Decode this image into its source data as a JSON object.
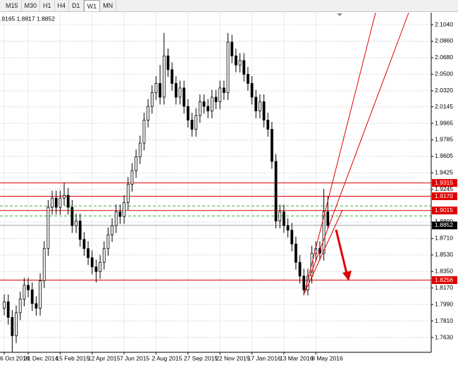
{
  "toolbar": {
    "timeframes": [
      "M15",
      "M30",
      "H1",
      "H4",
      "D1",
      "W1",
      "MN"
    ],
    "active": 5
  },
  "chart_data": {
    "type": "candlestick",
    "info": ".9165 1.8817 1.8852",
    "categories": [
      "6 Oct 2014",
      null,
      null,
      null,
      null,
      null,
      "21 Dec 2014",
      null,
      null,
      null,
      null,
      null,
      null,
      null,
      "15 Feb 2015",
      null,
      null,
      null,
      null,
      null,
      null,
      null,
      "12 Apr 2015",
      null,
      null,
      null,
      null,
      null,
      null,
      null,
      "7 Jun 2015",
      null,
      null,
      null,
      null,
      null,
      null,
      null,
      "2 Aug 2015",
      null,
      null,
      null,
      null,
      null,
      null,
      null,
      "27 Sep 2015",
      null,
      null,
      null,
      null,
      null,
      null,
      null,
      "22 Nov 2015",
      null,
      null,
      null,
      null,
      null,
      null,
      null,
      "17 Jan 2016",
      null,
      null,
      null,
      null,
      null,
      null,
      null,
      "13 Mar 2016",
      null,
      null,
      null,
      null,
      null,
      null,
      null,
      "8 May 2016",
      null,
      null,
      null
    ],
    "open": [
      1.795,
      1.802,
      1.785,
      1.765,
      1.79,
      1.805,
      1.82,
      1.815,
      1.8,
      1.795,
      1.825,
      1.86,
      1.905,
      1.915,
      1.905,
      1.915,
      1.918,
      1.905,
      1.885,
      1.89,
      1.87,
      1.86,
      1.85,
      1.84,
      1.835,
      1.845,
      1.86,
      1.875,
      1.885,
      1.9,
      1.895,
      1.91,
      1.93,
      1.945,
      1.96,
      1.975,
      2.0,
      2.015,
      2.03,
      2.04,
      2.025,
      2.07,
      2.055,
      2.04,
      2.025,
      2.035,
      2.015,
      2.0,
      1.99,
      2.005,
      2.02,
      2.015,
      2.01,
      2.025,
      2.02,
      2.035,
      2.03,
      2.085,
      2.07,
      2.06,
      2.065,
      2.05,
      2.04,
      2.025,
      2.01,
      2.02,
      2.0,
      1.99,
      1.955,
      1.89,
      1.9,
      1.885,
      1.88,
      1.865,
      1.845,
      1.83,
      1.815,
      1.83,
      1.855,
      1.86,
      1.855,
      1.9
    ],
    "high": [
      1.81,
      1.81,
      1.793,
      1.798,
      1.813,
      1.828,
      1.828,
      1.823,
      1.808,
      1.833,
      1.868,
      1.913,
      1.923,
      1.923,
      1.923,
      1.932,
      1.926,
      1.913,
      1.898,
      1.898,
      1.878,
      1.868,
      1.858,
      1.848,
      1.853,
      1.868,
      1.883,
      1.893,
      1.908,
      1.908,
      1.918,
      1.938,
      1.953,
      1.968,
      1.983,
      2.008,
      2.023,
      2.038,
      2.048,
      2.06,
      2.095,
      2.078,
      2.063,
      2.048,
      2.043,
      2.043,
      2.023,
      2.008,
      2.013,
      2.028,
      2.028,
      2.023,
      2.033,
      2.033,
      2.043,
      2.043,
      2.095,
      2.093,
      2.078,
      2.073,
      2.073,
      2.058,
      2.048,
      2.033,
      2.028,
      2.028,
      2.008,
      1.998,
      1.963,
      1.908,
      1.908,
      1.893,
      1.888,
      1.873,
      1.853,
      1.838,
      1.838,
      1.863,
      1.868,
      1.868,
      1.925,
      1.9165
    ],
    "low": [
      1.787,
      1.777,
      1.747,
      1.757,
      1.782,
      1.797,
      1.807,
      1.792,
      1.787,
      1.787,
      1.817,
      1.852,
      1.897,
      1.897,
      1.897,
      1.907,
      1.897,
      1.877,
      1.877,
      1.862,
      1.852,
      1.842,
      1.832,
      1.823,
      1.827,
      1.837,
      1.852,
      1.867,
      1.877,
      1.887,
      1.887,
      1.902,
      1.922,
      1.937,
      1.952,
      1.967,
      1.992,
      2.007,
      2.022,
      2.017,
      2.017,
      2.047,
      2.032,
      2.017,
      2.017,
      2.007,
      1.992,
      1.982,
      1.982,
      1.997,
      2.007,
      2.002,
      2.002,
      2.012,
      2.012,
      2.022,
      2.022,
      2.062,
      2.052,
      2.052,
      2.042,
      2.032,
      2.017,
      2.002,
      2.002,
      1.992,
      1.982,
      1.947,
      1.882,
      1.882,
      1.877,
      1.872,
      1.857,
      1.837,
      1.822,
      1.809,
      1.809,
      1.822,
      1.847,
      1.847,
      1.847,
      1.8817
    ],
    "close": [
      1.802,
      1.785,
      1.765,
      1.79,
      1.805,
      1.82,
      1.815,
      1.8,
      1.795,
      1.825,
      1.86,
      1.905,
      1.915,
      1.905,
      1.915,
      1.918,
      1.905,
      1.885,
      1.89,
      1.87,
      1.86,
      1.85,
      1.84,
      1.835,
      1.845,
      1.86,
      1.875,
      1.885,
      1.9,
      1.895,
      1.91,
      1.93,
      1.945,
      1.96,
      1.975,
      2.0,
      2.015,
      2.03,
      2.04,
      2.025,
      2.07,
      2.055,
      2.04,
      2.025,
      2.035,
      2.015,
      2.0,
      1.99,
      2.005,
      2.02,
      2.015,
      2.01,
      2.025,
      2.02,
      2.035,
      2.03,
      2.085,
      2.07,
      2.06,
      2.065,
      2.05,
      2.04,
      2.025,
      2.01,
      2.02,
      2.0,
      1.99,
      1.955,
      1.89,
      1.9,
      1.885,
      1.88,
      1.865,
      1.845,
      1.83,
      1.815,
      1.83,
      1.855,
      1.86,
      1.855,
      1.9,
      1.8852
    ],
    "up_color": "#ffffff",
    "down_color": "#000000",
    "ylim": [
      1.7469,
      2.1171
    ],
    "yticks": [
      {
        "value": 2.104,
        "label": "2.1040"
      },
      {
        "value": 2.086,
        "label": "2.0860"
      },
      {
        "value": 2.068,
        "label": "2.0680"
      },
      {
        "value": 2.05,
        "label": "2.0500"
      },
      {
        "value": 2.032,
        "label": "2.0320"
      },
      2.0145,
      1.9965,
      1.9785,
      1.9605,
      1.9425,
      1.9245,
      {
        "value": 1.889,
        "label": "1.8890"
      },
      {
        "value": 1.871,
        "label": "1.8710"
      },
      {
        "value": 1.853,
        "label": "1.8530"
      },
      {
        "value": 1.835,
        "label": "1.8350"
      },
      {
        "value": 1.817,
        "label": "1.8170"
      },
      {
        "value": 1.799,
        "label": "1.7990"
      },
      {
        "value": 1.781,
        "label": "1.7810"
      },
      {
        "value": 1.763,
        "label": "1.7630"
      }
    ],
    "grid": true,
    "levels": [
      {
        "value": 1.9065,
        "color": "#3cb043",
        "dashed": true
      },
      {
        "value": 1.8955,
        "color": "#3cb043",
        "dashed": true
      },
      {
        "value": 1.9315,
        "color": "#e00000",
        "box": "#e00000"
      },
      {
        "value": 1.917,
        "label": "1.9170",
        "color": "#e00000",
        "box": "#e00000"
      },
      {
        "value": 1.9015,
        "color": "#e00000",
        "box": "#e00000"
      },
      {
        "value": 1.8852,
        "color": "#a0a0a0",
        "box": "#000000"
      },
      {
        "value": 1.8256,
        "color": "#e00000",
        "box": "#e00000"
      }
    ]
  }
}
